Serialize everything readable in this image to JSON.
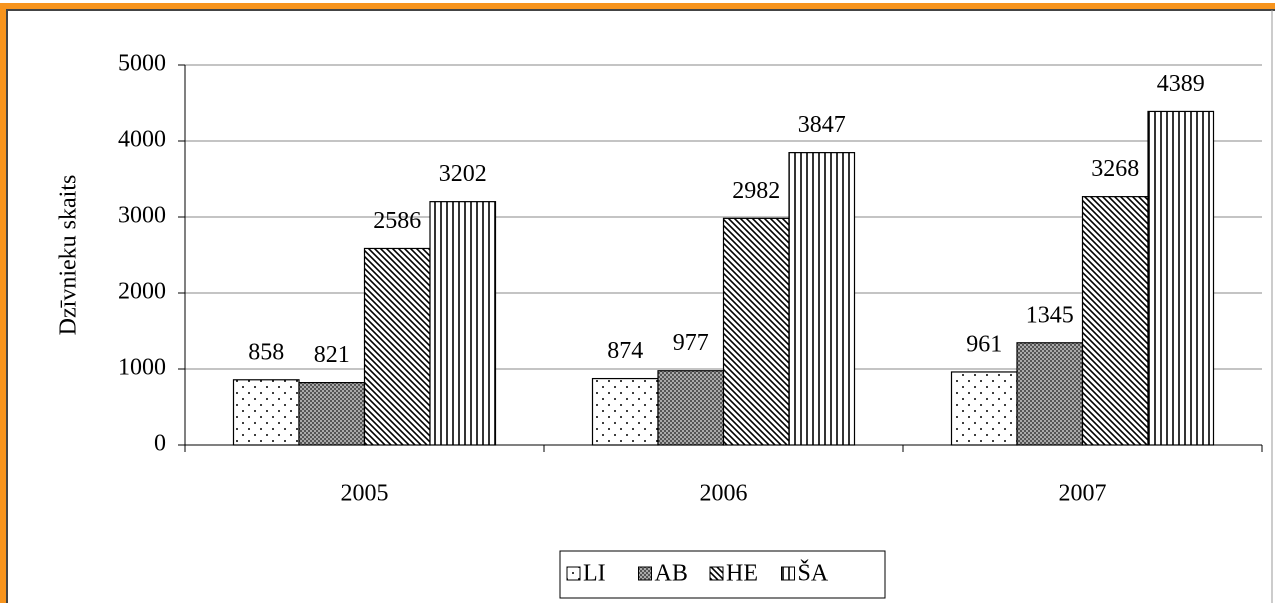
{
  "chart_data": {
    "type": "bar",
    "y_label": "Dzīvnieku skaits",
    "categories": [
      "2005",
      "2006",
      "2007"
    ],
    "series": [
      {
        "name": "LI",
        "color": "#ffffff",
        "pattern": "dots",
        "values": [
          858,
          874,
          961
        ]
      },
      {
        "name": "AB",
        "color": "#808080",
        "pattern": "crosshatch",
        "values": [
          821,
          977,
          1345
        ]
      },
      {
        "name": "HE",
        "color": "#ffffff",
        "pattern": "diagonal",
        "values": [
          2586,
          2982,
          3268
        ]
      },
      {
        "name": "ŠA",
        "color": "#ffffff",
        "pattern": "vertical",
        "values": [
          3202,
          3847,
          4389
        ]
      }
    ],
    "ylim": [
      0,
      5000
    ],
    "yticks": [
      0,
      1000,
      2000,
      3000,
      4000,
      5000
    ],
    "grid": true,
    "legend": "bottom"
  }
}
